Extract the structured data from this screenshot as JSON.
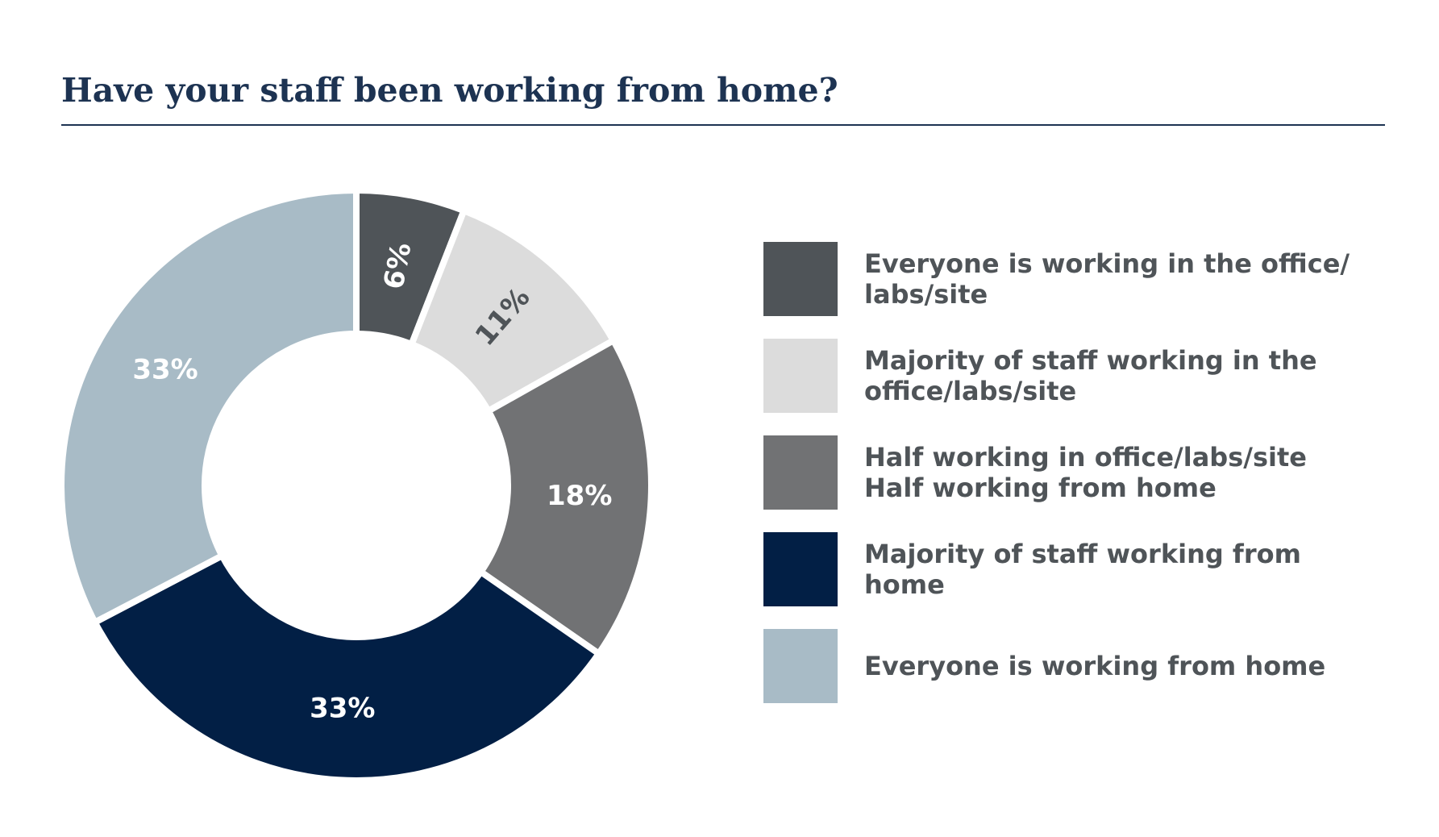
{
  "title": "Have your staff been working from home?",
  "chart_data": {
    "type": "pie",
    "title": "Have your staff been working from home?",
    "slices": [
      {
        "label": "Everyone is working in the office/\nlabs/site",
        "value": 6,
        "display": "6%",
        "color": "#4f5458",
        "label_color": "#ffffff"
      },
      {
        "label": "Majority of staff working in the\noffice/labs/site",
        "value": 11,
        "display": "11%",
        "color": "#dcdcdc",
        "label_color": "#4f5458"
      },
      {
        "label": "Half working in office/labs/site\nHalf working from home",
        "value": 18,
        "display": "18%",
        "color": "#717274",
        "label_color": "#ffffff"
      },
      {
        "label": "Majority of staff working from\nhome",
        "value": 33,
        "display": "33%",
        "color": "#021f45",
        "label_color": "#ffffff"
      },
      {
        "label": " Everyone is working from home",
        "value": 33,
        "display": "33%",
        "color": "#a8bbc6",
        "label_color": "#ffffff"
      }
    ],
    "legend_position": "right"
  }
}
